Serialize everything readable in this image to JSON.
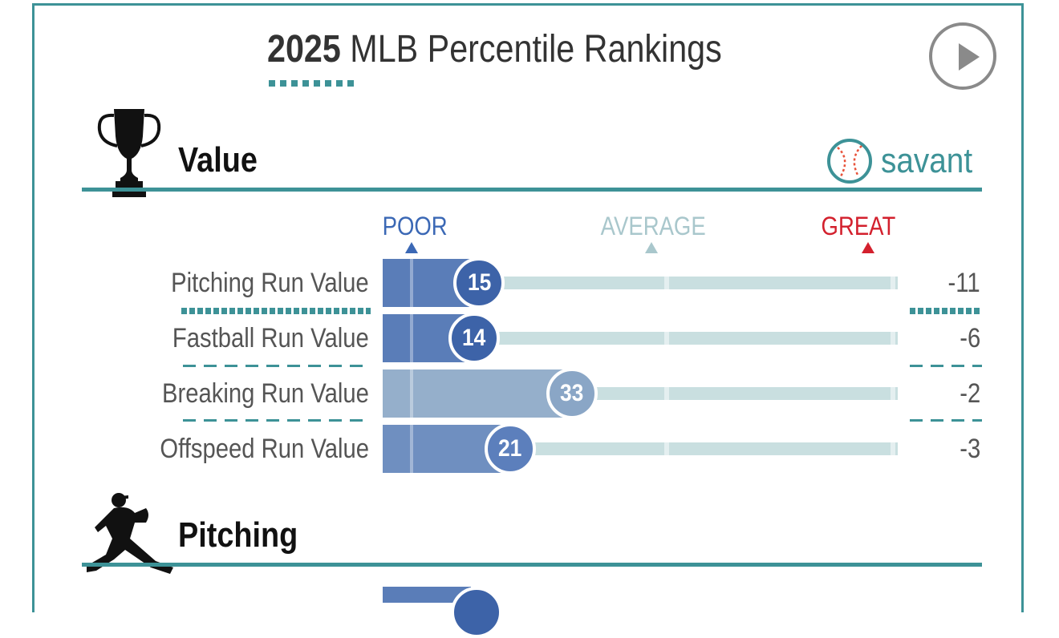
{
  "header": {
    "year": "2025",
    "title": "MLB Percentile Rankings"
  },
  "play_button": {
    "icon": "play-icon"
  },
  "sections": [
    {
      "label": "Value",
      "icon": "trophy-icon"
    },
    {
      "label": "Pitching",
      "icon": "pitcher-icon"
    }
  ],
  "brand": {
    "text": "savant",
    "icon": "baseball-icon"
  },
  "scale": {
    "poor": "POOR",
    "average": "AVERAGE",
    "great": "GREAT",
    "colors": {
      "poor": "#3b68b5",
      "average": "#a9c7cc",
      "great": "#d3202d"
    }
  },
  "metrics": [
    {
      "label": "Pitching Run Value",
      "percentile": 15,
      "value": "-11",
      "color": "#5a7db8"
    },
    {
      "label": "Fastball Run Value",
      "percentile": 14,
      "value": "-6",
      "color": "#5a7db8"
    },
    {
      "label": "Breaking Run Value",
      "percentile": 33,
      "value": "-2",
      "color": "#95afcb"
    },
    {
      "label": "Offspeed Run Value",
      "percentile": 21,
      "value": "-3",
      "color": "#6f8fc0"
    }
  ],
  "colors": {
    "accent": "#3d9297",
    "track": "#c9dfe0"
  }
}
